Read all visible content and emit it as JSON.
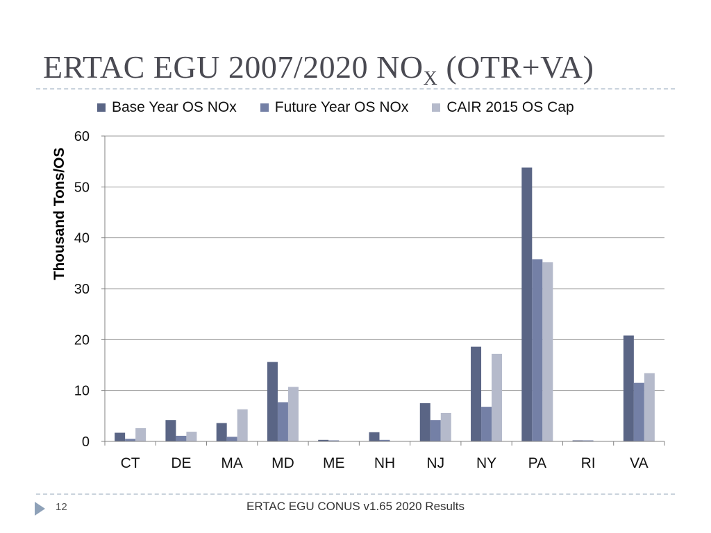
{
  "slide": {
    "title_main": "ERTAC EGU 2007/2020 NO",
    "title_sub": "X",
    "title_tail": " (OTR+VA)",
    "page_number": "12",
    "footer": "ERTAC EGU CONUS v1.65 2020 Results"
  },
  "colors": {
    "base": "#5a6585",
    "future": "#7480a6",
    "cap": "#b5bacb",
    "grid": "#9a9a9a",
    "rule": "#c9d2dc"
  },
  "chart_data": {
    "type": "bar",
    "title": "",
    "xlabel": "",
    "ylabel": "Thousand Tons/OS",
    "ylim": [
      0,
      60
    ],
    "yticks": [
      0,
      10,
      20,
      30,
      40,
      50,
      60
    ],
    "grid": true,
    "legend_position": "top",
    "categories": [
      "CT",
      "DE",
      "MA",
      "MD",
      "ME",
      "NH",
      "NJ",
      "NY",
      "PA",
      "RI",
      "VA"
    ],
    "series": [
      {
        "name": "Base Year OS NOx",
        "color": "#5a6585",
        "values": [
          1.7,
          4.2,
          3.6,
          15.6,
          0.3,
          1.8,
          7.5,
          18.6,
          53.8,
          0.2,
          20.8
        ]
      },
      {
        "name": "Future Year OS NOx",
        "color": "#7480a6",
        "values": [
          0.5,
          1.1,
          0.9,
          7.7,
          0.2,
          0.3,
          4.2,
          6.8,
          35.8,
          0.2,
          11.5
        ]
      },
      {
        "name": "CAIR 2015 OS Cap",
        "color": "#b5bacb",
        "values": [
          2.6,
          1.9,
          6.3,
          10.7,
          0,
          0,
          5.6,
          17.2,
          35.2,
          0,
          13.4
        ]
      }
    ]
  }
}
